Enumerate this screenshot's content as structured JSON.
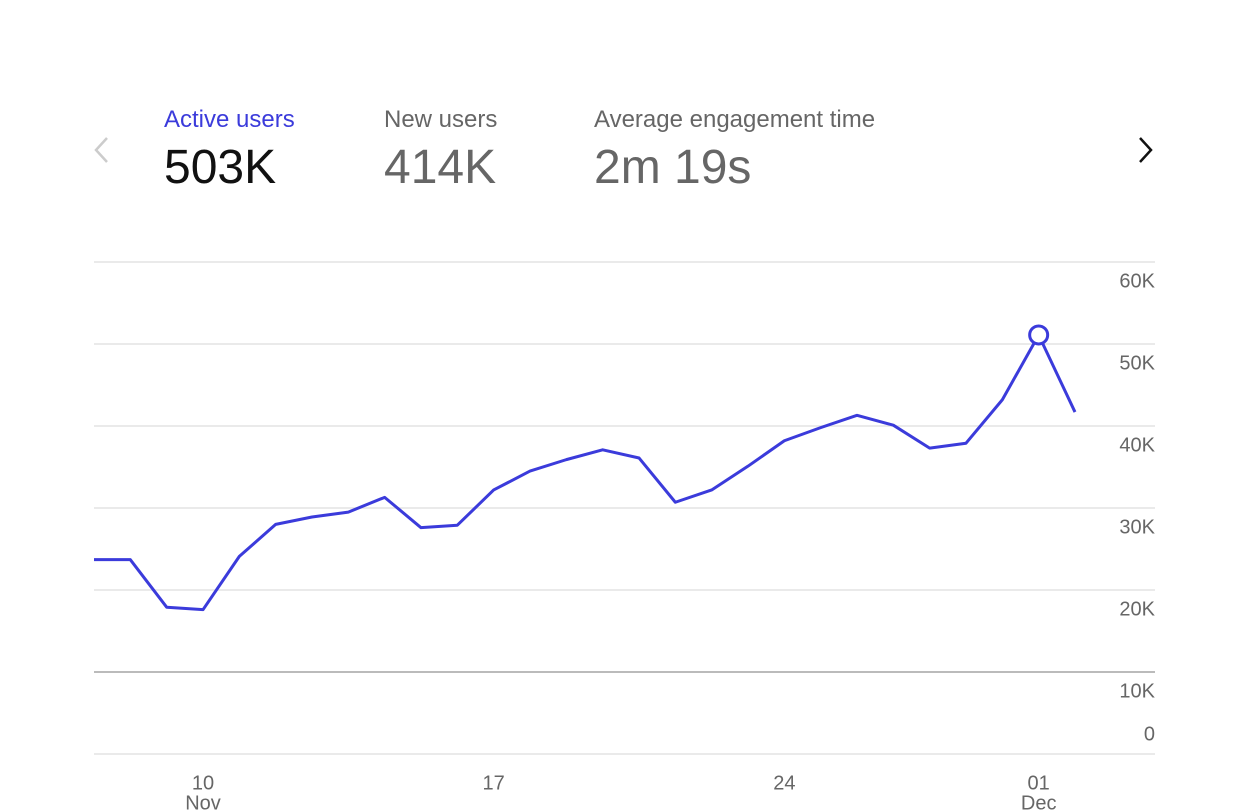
{
  "metrics": [
    {
      "label": "Active users",
      "value": "503K"
    },
    {
      "label": "New users",
      "value": "414K"
    },
    {
      "label": "Average engagement time",
      "value": "2m 19s"
    }
  ],
  "chart_data": {
    "type": "line",
    "categories": [
      null,
      null,
      null,
      "10",
      null,
      null,
      null,
      null,
      null,
      null,
      null,
      "17",
      null,
      null,
      null,
      null,
      null,
      null,
      null,
      "24",
      null,
      null,
      null,
      null,
      null,
      null,
      "01",
      null
    ],
    "month_labels": [
      null,
      null,
      null,
      "Nov",
      null,
      null,
      null,
      null,
      null,
      null,
      null,
      null,
      null,
      null,
      null,
      null,
      null,
      null,
      null,
      null,
      null,
      null,
      null,
      null,
      null,
      null,
      "Dec",
      null
    ],
    "series": [
      {
        "name": "Active users",
        "color": "#3b3bdb",
        "values": [
          23700,
          23700,
          17900,
          17600,
          24100,
          28000,
          28900,
          29500,
          31300,
          27600,
          27900,
          32200,
          34500,
          35900,
          37100,
          36100,
          30700,
          32200,
          35100,
          38200,
          39800,
          41300,
          40100,
          37300,
          37900,
          43200,
          51100,
          41700
        ]
      }
    ],
    "highlight_index": 26,
    "ylim": [
      0,
      60000
    ],
    "yticks": [
      0,
      {
        "value": 10000,
        "label": "10K"
      },
      {
        "value": 20000,
        "label": "20K"
      },
      {
        "value": 30000,
        "label": "30K"
      },
      {
        "value": 40000,
        "label": "40K"
      },
      {
        "value": 50000,
        "label": "50K"
      },
      {
        "value": 60000,
        "label": "60K"
      }
    ],
    "grid": true
  }
}
